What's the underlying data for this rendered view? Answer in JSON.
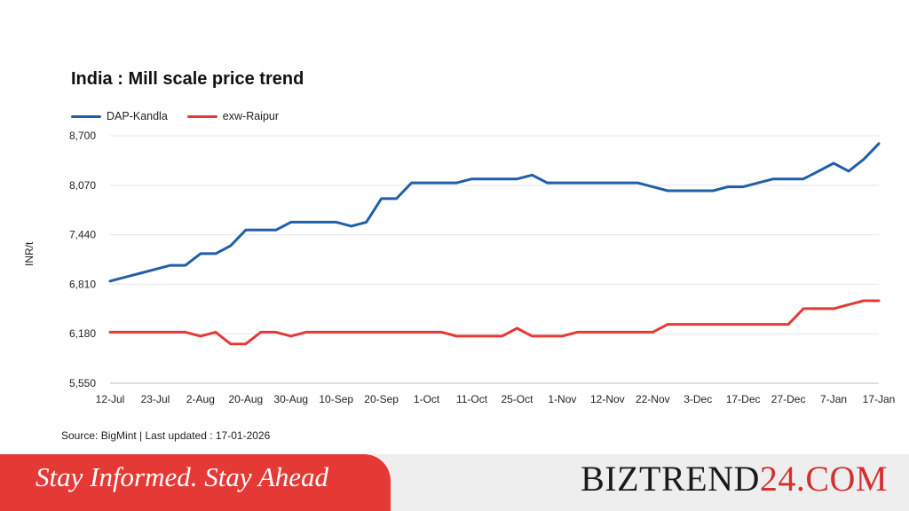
{
  "chart_data": {
    "type": "line",
    "title": "India : Mill scale price trend",
    "ylabel": "INR/t",
    "xlabel": "",
    "ylim": [
      5550,
      8700
    ],
    "yticks": [
      "5,550",
      "6,180",
      "6,810",
      "7,440",
      "8,070",
      "8,700"
    ],
    "ytick_values": [
      5550,
      6180,
      6810,
      7440,
      8070,
      8700
    ],
    "categories": [
      "12-Jul",
      "23-Jul",
      "2-Aug",
      "20-Aug",
      "30-Aug",
      "10-Sep",
      "20-Sep",
      "1-Oct",
      "11-Oct",
      "25-Oct",
      "1-Nov",
      "12-Nov",
      "22-Nov",
      "3-Dec",
      "17-Dec",
      "27-Dec",
      "7-Jan",
      "17-Jan"
    ],
    "legend_position": "top-left",
    "grid": true,
    "series": [
      {
        "name": "DAP-Kandla",
        "color": "#1f5fa8",
        "x": [
          0,
          1,
          2,
          3,
          4,
          5,
          6,
          7,
          8,
          9,
          10,
          11,
          12,
          13,
          14,
          15,
          16,
          17,
          18,
          19,
          20,
          21,
          22,
          23,
          24,
          25,
          26,
          27,
          28,
          29,
          30,
          31,
          32,
          33,
          34,
          35,
          36,
          37,
          38,
          39,
          40,
          41,
          42,
          43,
          44,
          45,
          46,
          47,
          48,
          49,
          50,
          51
        ],
        "values": [
          6850,
          6900,
          6950,
          7000,
          7050,
          7050,
          7200,
          7200,
          7300,
          7500,
          7500,
          7500,
          7600,
          7600,
          7600,
          7600,
          7550,
          7600,
          7900,
          7900,
          8100,
          8100,
          8100,
          8100,
          8150,
          8150,
          8150,
          8150,
          8200,
          8100,
          8100,
          8100,
          8100,
          8100,
          8100,
          8100,
          8050,
          8000,
          8000,
          8000,
          8000,
          8050,
          8050,
          8100,
          8150,
          8150,
          8150,
          8250,
          8350,
          8250,
          8400,
          8600
        ]
      },
      {
        "name": "exw-Raipur",
        "color": "#e53935",
        "x": [
          0,
          1,
          2,
          3,
          4,
          5,
          6,
          7,
          8,
          9,
          10,
          11,
          12,
          13,
          14,
          15,
          16,
          17,
          18,
          19,
          20,
          21,
          22,
          23,
          24,
          25,
          26,
          27,
          28,
          29,
          30,
          31,
          32,
          33,
          34,
          35,
          36,
          37,
          38,
          39,
          40,
          41,
          42,
          43,
          44,
          45,
          46,
          47,
          48,
          49,
          50,
          51
        ],
        "values": [
          6200,
          6200,
          6200,
          6200,
          6200,
          6200,
          6150,
          6200,
          6050,
          6050,
          6200,
          6200,
          6150,
          6200,
          6200,
          6200,
          6200,
          6200,
          6200,
          6200,
          6200,
          6200,
          6200,
          6150,
          6150,
          6150,
          6150,
          6250,
          6150,
          6150,
          6150,
          6200,
          6200,
          6200,
          6200,
          6200,
          6200,
          6300,
          6300,
          6300,
          6300,
          6300,
          6300,
          6300,
          6300,
          6300,
          6500,
          6500,
          6500,
          6550,
          6600,
          6600
        ]
      }
    ]
  },
  "source_text": "Source: BigMint | Last updated : 17-01-2026",
  "banner": {
    "tagline": "Stay Informed. Stay Ahead",
    "brand_part1": "BIZTREND",
    "brand_part2": "24.COM",
    "accent_color": "#e53935"
  }
}
